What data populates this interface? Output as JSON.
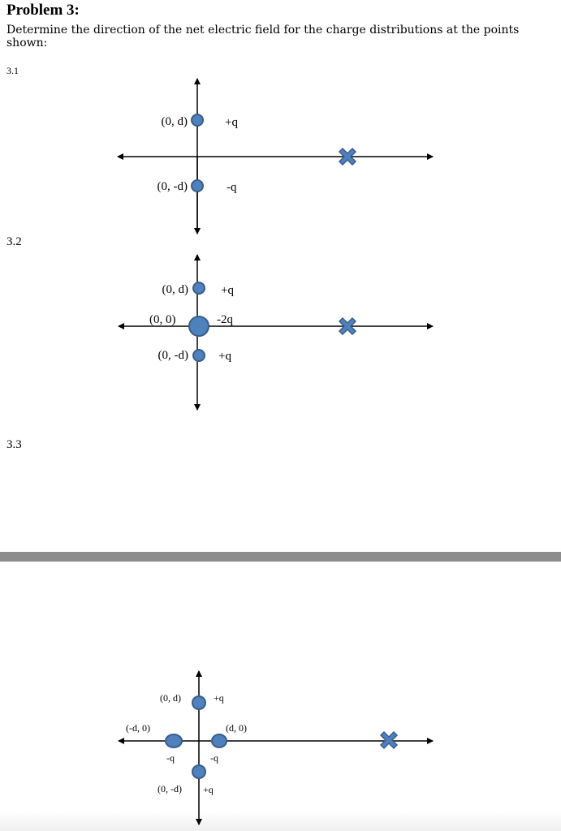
{
  "header": {
    "title": "Problem 3:",
    "instruction": "Determine the direction of the net electric field for the charge distributions at the points shown:"
  },
  "parts": [
    {
      "number": "3.1",
      "labels": {
        "top_coord": "(0, d)",
        "top_charge": "+q",
        "bottom_coord": "(0, -d)",
        "bottom_charge": "-q"
      }
    },
    {
      "number": "3.2",
      "labels": {
        "top_coord": "(0, d)",
        "top_charge": "+q",
        "origin_coord": "(0, 0)",
        "origin_charge": "-2q",
        "bottom_coord": "(0, -d)",
        "bottom_charge": "+q"
      }
    },
    {
      "number": "3.3",
      "labels": {
        "top_coord": "(0, d)",
        "top_charge": "+q",
        "left_coord": "(-d, 0)",
        "left_charge": "-q",
        "right_coord": "(d, 0)",
        "right_charge": "-q",
        "bottom_coord": "(0, -d)",
        "bottom_charge": "+q"
      }
    }
  ],
  "colors": {
    "charge_fill": "#4f81bd",
    "charge_stroke": "#385d8a",
    "page_separator": "#8c8c8c"
  },
  "icons": {
    "field_point": "x-marker-icon"
  }
}
